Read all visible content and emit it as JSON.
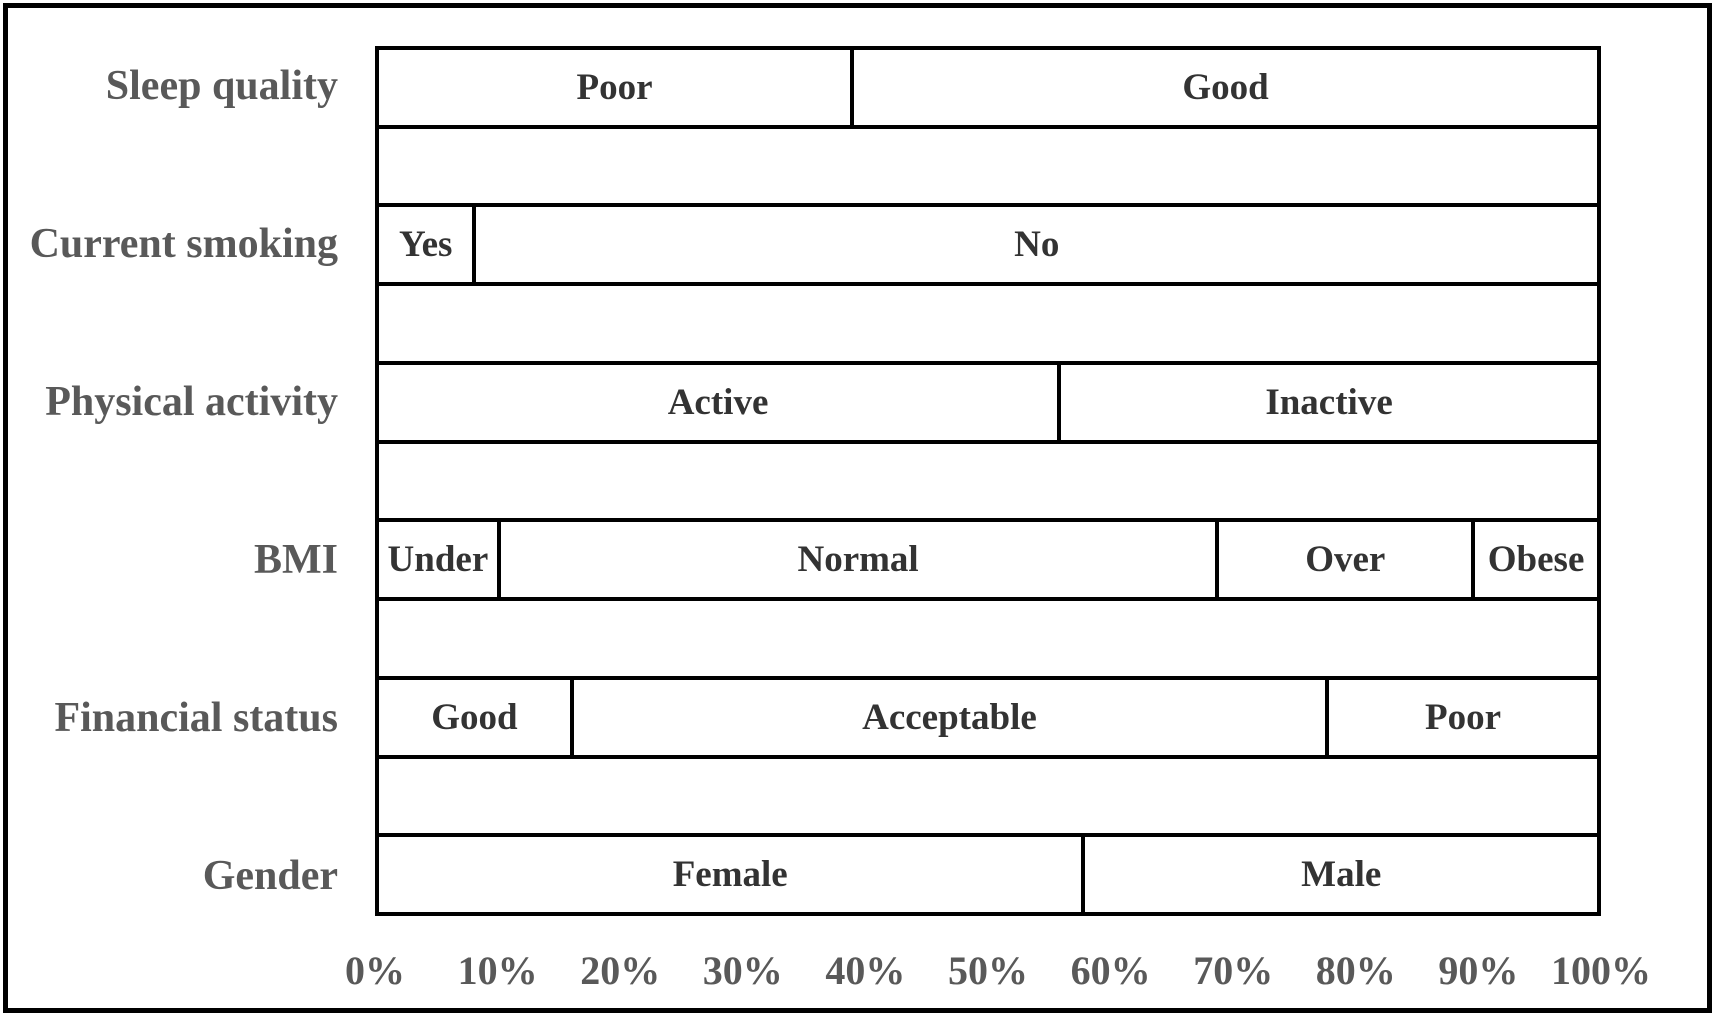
{
  "chart_data": {
    "type": "bar",
    "subtype": "horizontal-stacked-100",
    "title": "",
    "xlabel": "",
    "ylabel": "",
    "unit": "%",
    "axis": {
      "min": 0,
      "max": 100,
      "ticks": [
        "0%",
        "10%",
        "20%",
        "30%",
        "40%",
        "50%",
        "60%",
        "70%",
        "80%",
        "90%",
        "100%"
      ]
    },
    "grid": "boxed-rows-with-empty-spacer-rows",
    "legend": "none",
    "rows": [
      {
        "category": "Sleep quality",
        "segments": [
          {
            "label": "Poor",
            "value": 39
          },
          {
            "label": "Good",
            "value": 61
          }
        ]
      },
      {
        "category": "Current smoking",
        "segments": [
          {
            "label": "Yes",
            "value": 8
          },
          {
            "label": "No",
            "value": 92
          }
        ]
      },
      {
        "category": "Physical activity",
        "segments": [
          {
            "label": "Active",
            "value": 56
          },
          {
            "label": "Inactive",
            "value": 44
          }
        ]
      },
      {
        "category": "BMI",
        "segments": [
          {
            "label": "Under",
            "value": 10
          },
          {
            "label": "Normal",
            "value": 59
          },
          {
            "label": "Over",
            "value": 21
          },
          {
            "label": "Obese",
            "value": 10
          }
        ]
      },
      {
        "category": "Financial status",
        "segments": [
          {
            "label": "Good",
            "value": 16
          },
          {
            "label": "Acceptable",
            "value": 62
          },
          {
            "label": "Poor",
            "value": 22
          }
        ]
      },
      {
        "category": "Gender",
        "segments": [
          {
            "label": "Female",
            "value": 58
          },
          {
            "label": "Male",
            "value": 42
          }
        ]
      }
    ],
    "colors": {
      "background": "#ffffff",
      "bar_fill": "#ffffff",
      "border": "#000000",
      "category_label_text": "#595959",
      "axis_label_text": "#595959",
      "segment_label_text": "#333333"
    }
  }
}
